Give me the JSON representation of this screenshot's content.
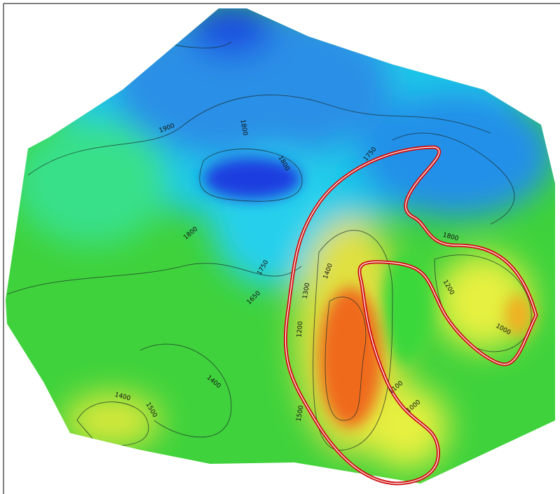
{
  "map": {
    "contour_labels": [
      "1900",
      "1800",
      "1800",
      "1750",
      "1800",
      "1800",
      "1750",
      "1650",
      "1400",
      "1300",
      "1200",
      "1400",
      "1400",
      "1500",
      "1500",
      "1100",
      "1000",
      "1200",
      "1000"
    ]
  }
}
